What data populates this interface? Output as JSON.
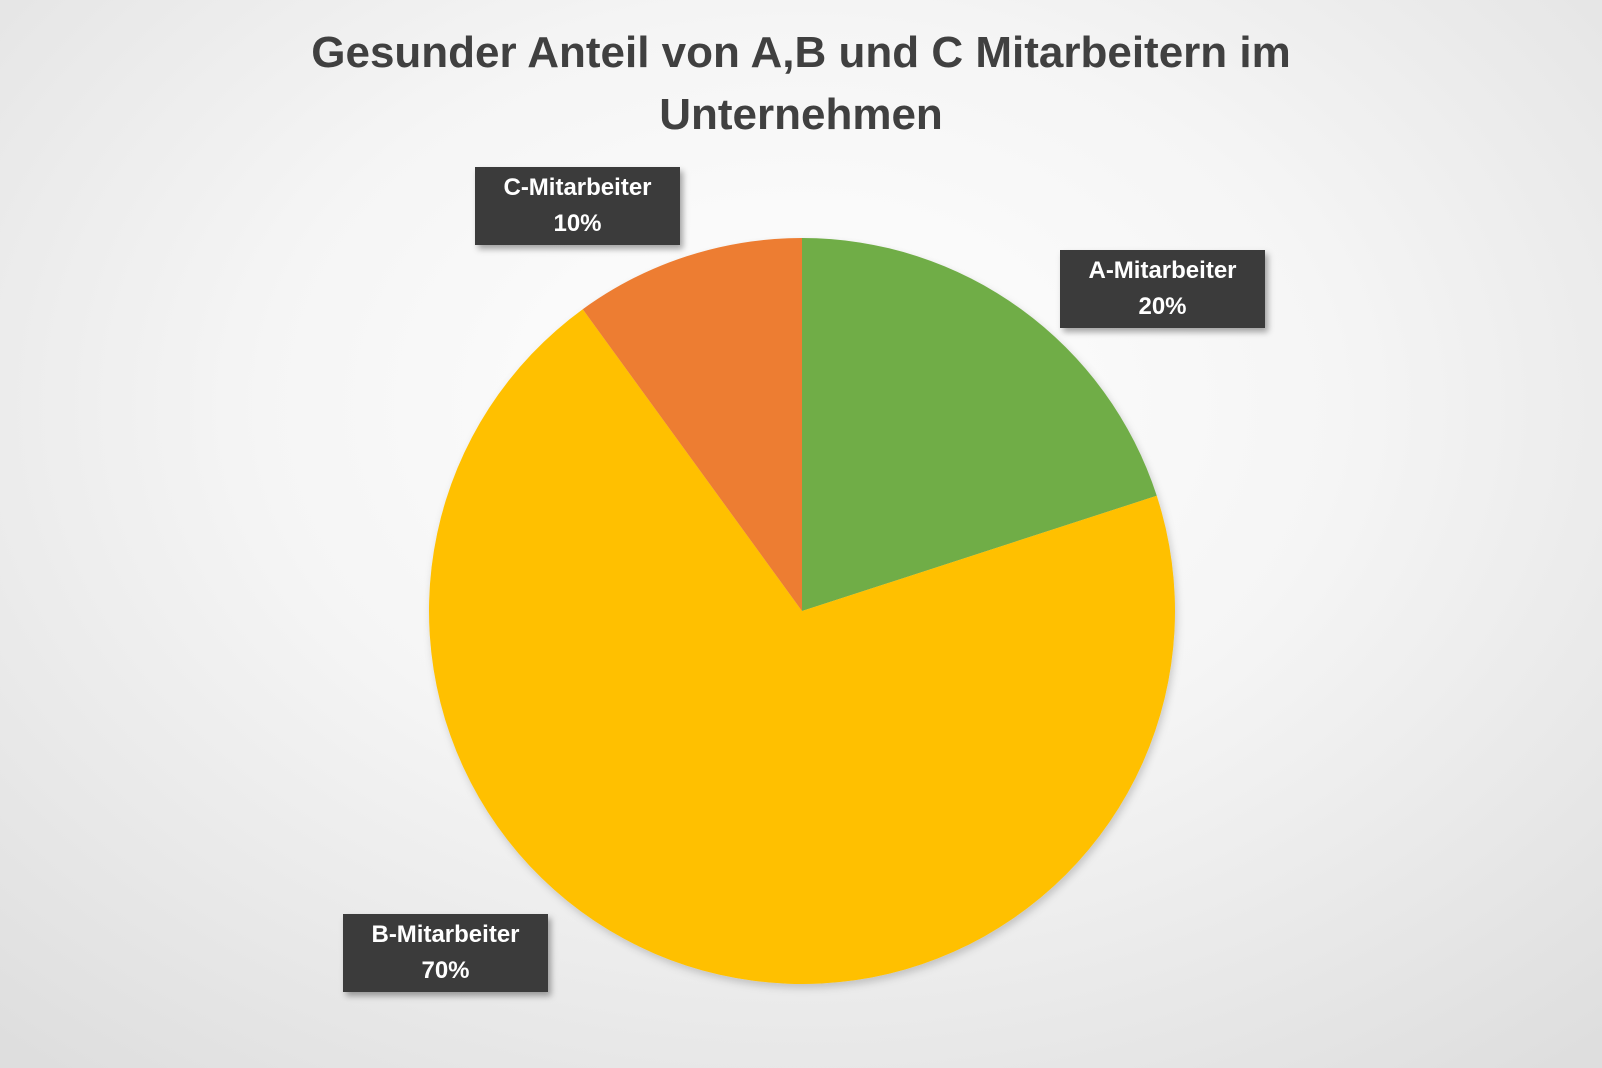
{
  "chart_data": {
    "type": "pie",
    "title_lines": [
      "Gesunder Anteil von A,B und C Mitarbeitern im",
      "Unternehmen"
    ],
    "slices": [
      {
        "name": "A-Mitarbeiter",
        "value": 20,
        "label": "20%",
        "color": "#70ad47"
      },
      {
        "name": "B-Mitarbeiter",
        "value": 70,
        "label": "70%",
        "color": "#ffc000"
      },
      {
        "name": "C-Mitarbeiter",
        "value": 10,
        "label": "10%",
        "color": "#ed7d31"
      }
    ],
    "start_angle_deg": 0,
    "direction": "clockwise"
  }
}
